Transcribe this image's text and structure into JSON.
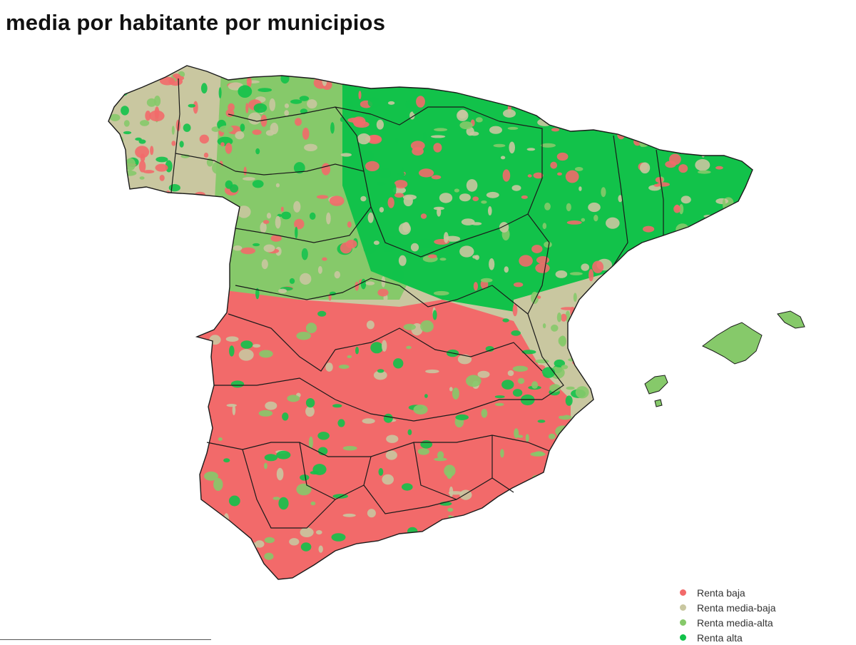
{
  "title": "media por habitante por municipios",
  "map": {
    "subject": "Spain",
    "colors": {
      "sea": "#ffffff",
      "border": "#1a1a1a",
      "renta_baja": "#f26a6a",
      "renta_media_baja": "#c9c7a0",
      "renta_media_alta": "#86c96a",
      "renta_alta": "#12c24a"
    }
  },
  "legend": {
    "items": [
      {
        "label": "Renta baja",
        "color": "#f26a6a"
      },
      {
        "label": "Renta media-baja",
        "color": "#c9c7a0"
      },
      {
        "label": "Renta media-alta",
        "color": "#86c96a"
      },
      {
        "label": "Renta alta",
        "color": "#12c24a"
      }
    ]
  }
}
